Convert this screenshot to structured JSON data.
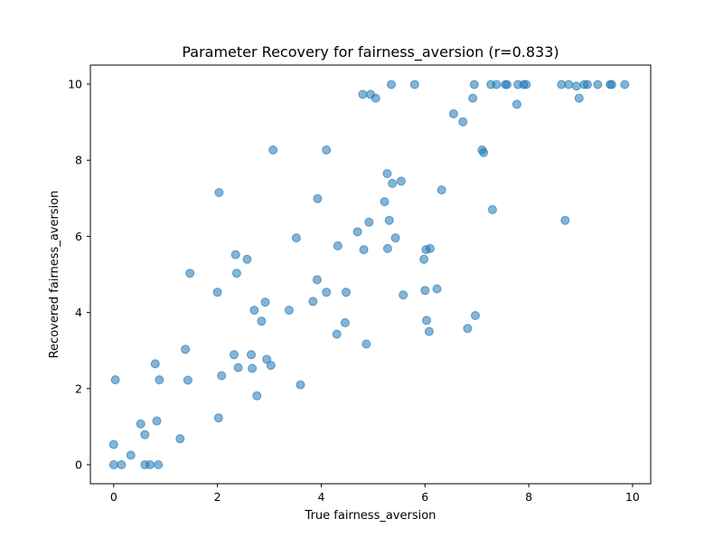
{
  "chart_data": {
    "type": "scatter",
    "title": "Parameter Recovery for fairness_aversion (r=0.833)",
    "xlabel": "True fairness_aversion",
    "ylabel": "Recovered fairness_aversion",
    "xlim": [
      -0.45,
      10.35
    ],
    "ylim": [
      -0.5,
      10.5
    ],
    "xticks": [
      0,
      2,
      4,
      6,
      8,
      10
    ],
    "yticks": [
      0,
      2,
      4,
      6,
      8,
      10
    ],
    "grid": false,
    "marker_color": "#1f77b4",
    "marker_alpha": 0.55,
    "points": [
      [
        0.0,
        0.0
      ],
      [
        0.15,
        0.0
      ],
      [
        0.0,
        0.53
      ],
      [
        0.03,
        2.23
      ],
      [
        0.33,
        0.25
      ],
      [
        0.52,
        1.07
      ],
      [
        0.6,
        0.0
      ],
      [
        0.6,
        0.79
      ],
      [
        0.7,
        0.0
      ],
      [
        0.8,
        2.65
      ],
      [
        0.83,
        1.15
      ],
      [
        0.86,
        0.0
      ],
      [
        0.88,
        2.23
      ],
      [
        1.28,
        0.68
      ],
      [
        1.38,
        3.03
      ],
      [
        1.43,
        2.22
      ],
      [
        1.47,
        5.03
      ],
      [
        2.0,
        4.53
      ],
      [
        2.02,
        1.23
      ],
      [
        2.03,
        7.15
      ],
      [
        2.08,
        2.34
      ],
      [
        2.32,
        2.89
      ],
      [
        2.35,
        5.52
      ],
      [
        2.37,
        5.03
      ],
      [
        2.4,
        2.55
      ],
      [
        2.57,
        5.4
      ],
      [
        2.65,
        2.89
      ],
      [
        2.67,
        2.53
      ],
      [
        2.71,
        4.06
      ],
      [
        2.76,
        1.81
      ],
      [
        2.85,
        3.77
      ],
      [
        2.92,
        4.27
      ],
      [
        2.95,
        2.77
      ],
      [
        3.03,
        2.61
      ],
      [
        3.07,
        8.27
      ],
      [
        3.38,
        4.06
      ],
      [
        3.52,
        5.96
      ],
      [
        3.6,
        2.1
      ],
      [
        3.84,
        4.29
      ],
      [
        3.92,
        4.86
      ],
      [
        3.93,
        6.99
      ],
      [
        4.1,
        4.53
      ],
      [
        4.1,
        8.27
      ],
      [
        4.3,
        3.43
      ],
      [
        4.32,
        5.75
      ],
      [
        4.46,
        3.73
      ],
      [
        4.48,
        4.53
      ],
      [
        4.7,
        6.12
      ],
      [
        4.8,
        9.73
      ],
      [
        4.82,
        5.65
      ],
      [
        4.87,
        3.17
      ],
      [
        4.92,
        6.37
      ],
      [
        4.95,
        9.73
      ],
      [
        5.05,
        9.63
      ],
      [
        5.22,
        6.91
      ],
      [
        5.27,
        7.65
      ],
      [
        5.28,
        5.68
      ],
      [
        5.31,
        6.42
      ],
      [
        5.35,
        9.99
      ],
      [
        5.37,
        7.39
      ],
      [
        5.43,
        5.96
      ],
      [
        5.54,
        7.45
      ],
      [
        5.58,
        4.46
      ],
      [
        5.8,
        9.99
      ],
      [
        5.98,
        5.4
      ],
      [
        6.0,
        4.58
      ],
      [
        6.02,
        5.65
      ],
      [
        6.03,
        3.79
      ],
      [
        6.08,
        3.5
      ],
      [
        6.1,
        5.68
      ],
      [
        6.23,
        4.62
      ],
      [
        6.32,
        7.22
      ],
      [
        6.55,
        9.22
      ],
      [
        6.73,
        9.01
      ],
      [
        6.82,
        3.58
      ],
      [
        6.92,
        9.63
      ],
      [
        6.95,
        9.99
      ],
      [
        6.97,
        3.92
      ],
      [
        7.1,
        8.27
      ],
      [
        7.13,
        8.2
      ],
      [
        7.27,
        9.99
      ],
      [
        7.3,
        6.7
      ],
      [
        7.38,
        9.99
      ],
      [
        7.55,
        9.99
      ],
      [
        7.58,
        9.99
      ],
      [
        7.77,
        9.47
      ],
      [
        7.79,
        9.99
      ],
      [
        7.9,
        9.99
      ],
      [
        7.95,
        9.99
      ],
      [
        8.63,
        9.99
      ],
      [
        8.7,
        6.42
      ],
      [
        8.77,
        9.99
      ],
      [
        8.92,
        9.95
      ],
      [
        8.97,
        9.63
      ],
      [
        9.07,
        9.99
      ],
      [
        9.13,
        9.99
      ],
      [
        9.33,
        9.99
      ],
      [
        9.57,
        9.99
      ],
      [
        9.6,
        9.99
      ],
      [
        9.85,
        9.99
      ]
    ]
  }
}
